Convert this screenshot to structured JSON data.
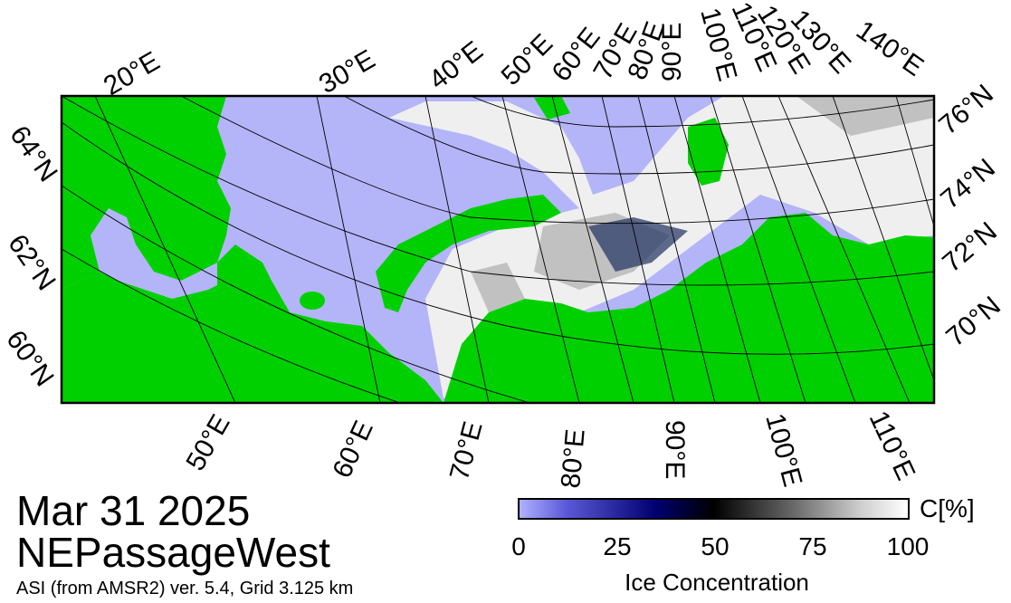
{
  "title_date": "Mar 31 2025",
  "region_name": "NEPassageWest",
  "source_text": "ASI (from AMSR2) ver. 5.4,  Grid 3.125 km",
  "top_lon_labels": [
    "20°E",
    "30°E",
    "40°E",
    "50°E",
    "60°E",
    "70°E",
    "80°E",
    "90°E",
    "100°E",
    "110°E",
    "120°E",
    "130°E",
    "140°E"
  ],
  "bottom_lon_labels": [
    "50°E",
    "60°E",
    "70°E",
    "80°E",
    "90°E",
    "100°E",
    "110°E"
  ],
  "left_lat_labels": [
    "64°N",
    "62°N",
    "60°N"
  ],
  "right_lat_labels": [
    "76°N",
    "74°N",
    "72°N",
    "70°N"
  ],
  "colorbar": {
    "unit": "C[%]",
    "title": "Ice Concentration",
    "ticks": [
      "0",
      "25",
      "50",
      "75",
      "100"
    ],
    "range": [
      0,
      100
    ],
    "colors": {
      "low": "#b0b0ff",
      "mid": "#000000",
      "high": "#ffffff"
    }
  },
  "map_colors": {
    "land": "#00d000",
    "open_water": "#b4b4f8",
    "ice": "#f2f2f2",
    "grid": "#000000"
  }
}
